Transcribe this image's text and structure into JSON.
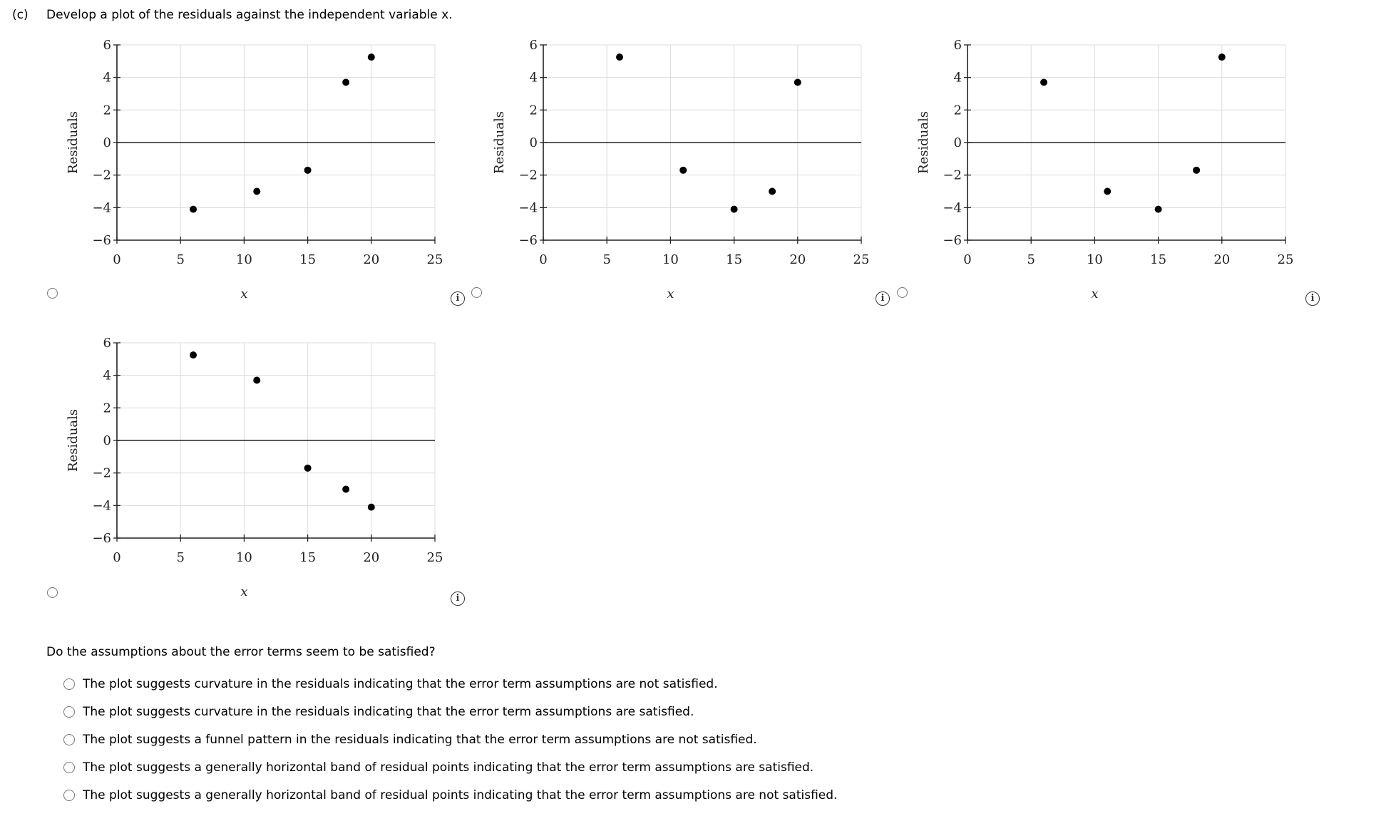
{
  "title": {
    "part": "(c)",
    "text": "Develop a plot of the residuals against the independent variable x."
  },
  "question": {
    "text": "Do the assumptions about the error terms seem to be satisfied?",
    "options": [
      "The plot suggests curvature in the residuals indicating that the error term assumptions are not satisfied.",
      "The plot suggests curvature in the residuals indicating that the error term assumptions are satisfied.",
      "The plot suggests a funnel pattern in the residuals indicating that the error term assumptions are not satisfied.",
      "The plot suggests a generally horizontal band of residual points indicating that the error term assumptions are satisfied.",
      "The plot suggests a generally horizontal band of residual points indicating that the error term assumptions are not satisfied."
    ]
  },
  "info_icon_glyph": "i",
  "chart_data": [
    {
      "type": "scatter",
      "title": "",
      "xlabel": "x",
      "ylabel": "Residuals",
      "xlim": [
        0,
        25
      ],
      "ylim": [
        -6,
        6
      ],
      "xticks": [
        0,
        5,
        10,
        15,
        20,
        25
      ],
      "yticks": [
        -6,
        -4,
        -2,
        0,
        2,
        4,
        6
      ],
      "grid": true,
      "x": [
        6,
        11,
        15,
        18,
        20
      ],
      "y": [
        -4.1,
        -3.0,
        -1.7,
        3.7,
        5.25
      ]
    },
    {
      "type": "scatter",
      "title": "",
      "xlabel": "x",
      "ylabel": "Residuals",
      "xlim": [
        0,
        25
      ],
      "ylim": [
        -6,
        6
      ],
      "xticks": [
        0,
        5,
        10,
        15,
        20,
        25
      ],
      "yticks": [
        -6,
        -4,
        -2,
        0,
        2,
        4,
        6
      ],
      "grid": true,
      "x": [
        6,
        11,
        15,
        18,
        20
      ],
      "y": [
        5.25,
        -1.7,
        -4.1,
        -3.0,
        3.7
      ]
    },
    {
      "type": "scatter",
      "title": "",
      "xlabel": "x",
      "ylabel": "Residuals",
      "xlim": [
        0,
        25
      ],
      "ylim": [
        -6,
        6
      ],
      "xticks": [
        0,
        5,
        10,
        15,
        20,
        25
      ],
      "yticks": [
        -6,
        -4,
        -2,
        0,
        2,
        4,
        6
      ],
      "grid": true,
      "x": [
        6,
        11,
        15,
        18,
        20
      ],
      "y": [
        3.7,
        -3.0,
        -4.1,
        -1.7,
        5.25
      ]
    },
    {
      "type": "scatter",
      "title": "",
      "xlabel": "x",
      "ylabel": "Residuals",
      "xlim": [
        0,
        25
      ],
      "ylim": [
        -6,
        6
      ],
      "xticks": [
        0,
        5,
        10,
        15,
        20,
        25
      ],
      "yticks": [
        -6,
        -4,
        -2,
        0,
        2,
        4,
        6
      ],
      "grid": true,
      "x": [
        6,
        11,
        15,
        18,
        20
      ],
      "y": [
        5.25,
        3.7,
        -1.7,
        -3.0,
        -4.1
      ]
    }
  ]
}
